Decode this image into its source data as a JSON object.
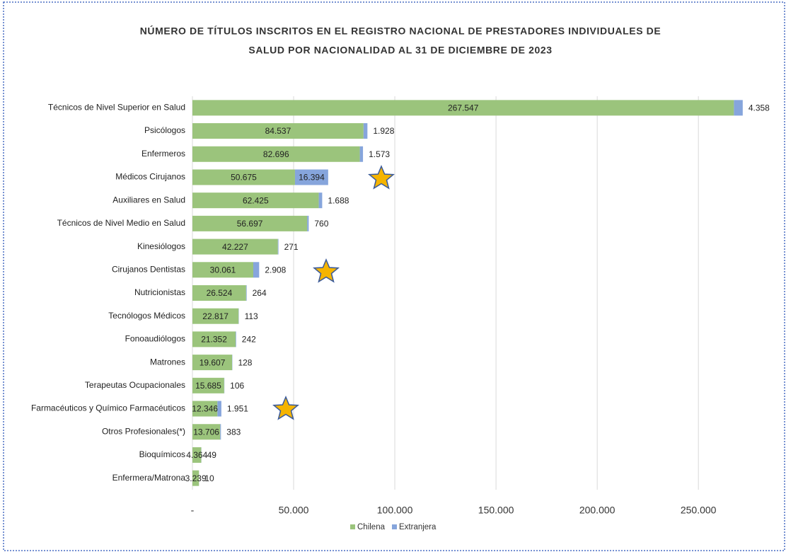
{
  "chart_data": {
    "type": "stacked_barh",
    "title": [
      "NÚMERO DE TÍTULOS INSCRITOS EN EL REGISTRO NACIONAL DE PRESTADORES INDIVIDUALES DE",
      "SALUD POR NACIONALIDAD AL 31 DE DICIEMBRE DE 2023"
    ],
    "categories": [
      "Técnicos de Nivel Superior en Salud",
      "Psicólogos",
      "Enfermeros",
      "Médicos Cirujanos",
      "Auxiliares en Salud",
      "Técnicos de Nivel Medio en Salud",
      "Kinesiólogos",
      "Cirujanos Dentistas",
      "Nutricionistas",
      "Tecnólogos Médicos",
      "Fonoaudiólogos",
      "Matrones",
      "Terapeutas Ocupacionales",
      "Farmacéuticos y Químico Farmacéuticos",
      "Otros Profesionales(*)",
      "Bioquímicos",
      "Enfermera/Matrona"
    ],
    "series": [
      {
        "name": "Chilena",
        "color": "#9bc47c",
        "values": [
          267547,
          84537,
          82696,
          50675,
          62425,
          56697,
          42227,
          30061,
          26524,
          22817,
          21352,
          19607,
          15685,
          12346,
          13706,
          4364,
          3239
        ],
        "value_labels": [
          "267.547",
          "84.537",
          "82.696",
          "50.675",
          "62.425",
          "56.697",
          "42.227",
          "30.061",
          "26.524",
          "22.817",
          "21.352",
          "19.607",
          "15.685",
          "12.346",
          "13.706",
          "4.364",
          "3.239"
        ]
      },
      {
        "name": "Extranjera",
        "color": "#86a5dc",
        "values": [
          4358,
          1928,
          1573,
          16394,
          1688,
          760,
          271,
          2908,
          264,
          113,
          242,
          128,
          106,
          1951,
          383,
          49,
          10
        ],
        "value_labels": [
          "4.358",
          "1.928",
          "1.573",
          "16.394",
          "1.688",
          "760",
          "271",
          "2.908",
          "264",
          "113",
          "242",
          "128",
          "106",
          "1.951",
          "383",
          "49",
          "10"
        ]
      }
    ],
    "xlim": [
      0,
      280000
    ],
    "xticks": [
      {
        "value": 0,
        "label": "-"
      },
      {
        "value": 50000,
        "label": "50.000"
      },
      {
        "value": 100000,
        "label": "100.000"
      },
      {
        "value": 150000,
        "label": "150.000"
      },
      {
        "value": 200000,
        "label": "200.000"
      },
      {
        "value": 250000,
        "label": "250.000"
      }
    ],
    "grid": true,
    "legend": "bottom"
  }
}
